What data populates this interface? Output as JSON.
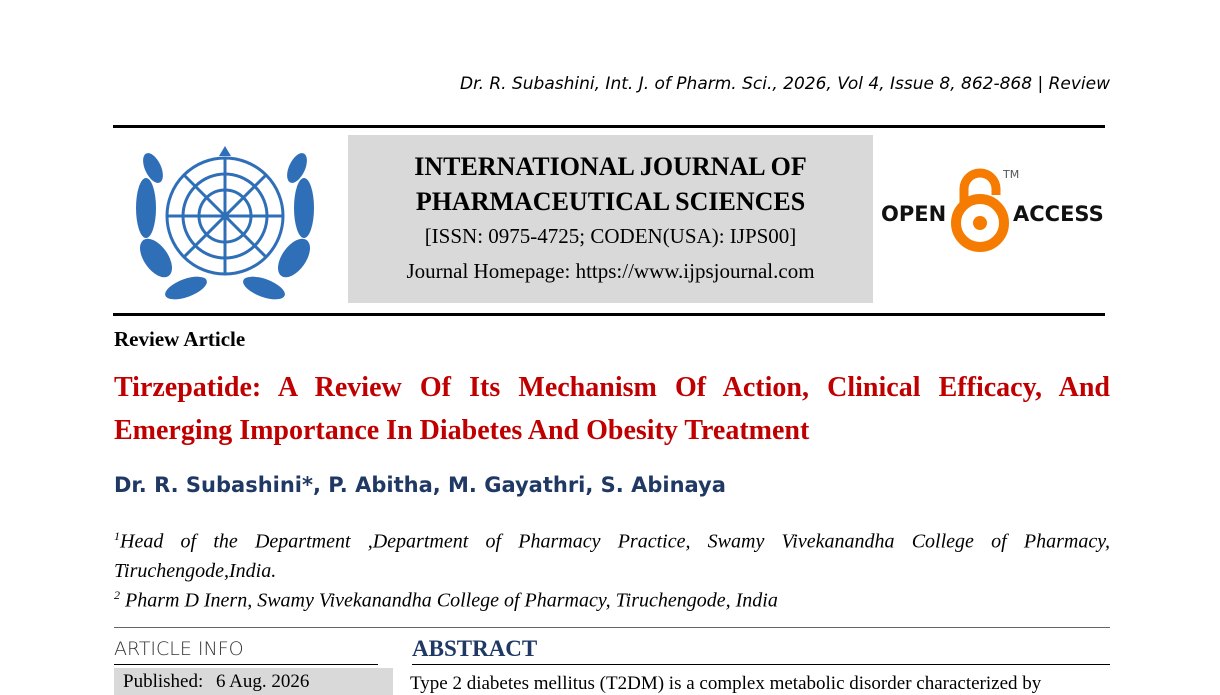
{
  "header": {
    "citation": "Dr. R. Subashini, Int. J. of Pharm. Sci., 2026, Vol 4, Issue 8, 862-868 | Review"
  },
  "journal": {
    "name_lines": [
      "INTERNATIONAL JOURNAL OF",
      "PHARMACEUTICAL SCIENCES"
    ],
    "ids": "[ISSN: 0975-4725; CODEN(USA): IJPS00]",
    "homepage": "Journal Homepage: https://www.ijpsjournal.com"
  },
  "open_access": {
    "left": "OPEN",
    "right": "ACCESS",
    "mark": "TM"
  },
  "article": {
    "type": "Review Article",
    "title": "Tirzepatide: A Review Of Its Mechanism Of Action, Clinical Efficacy, And Emerging Importance In Diabetes And Obesity Treatment",
    "authors": "Dr. R. Subashini*, P. Abitha, M. Gayathri, S. Abinaya",
    "affiliations": [
      {
        "num": "1",
        "text": "Head of the Department ,Department of Pharmacy Practice, Swamy Vivekanandha College of Pharmacy, Tiruchengode,India."
      },
      {
        "num": "2",
        "text": " Pharm D Inern, Swamy Vivekanandha College of Pharmacy, Tiruchengode, India"
      }
    ]
  },
  "article_info": {
    "heading": "ARTICLE INFO",
    "published_label": "Published:",
    "published_date": "6 Aug. 2026"
  },
  "abstract": {
    "heading": "ABSTRACT",
    "text": "Type 2 diabetes mellitus (T2DM) is a complex metabolic disorder characterized by"
  }
}
